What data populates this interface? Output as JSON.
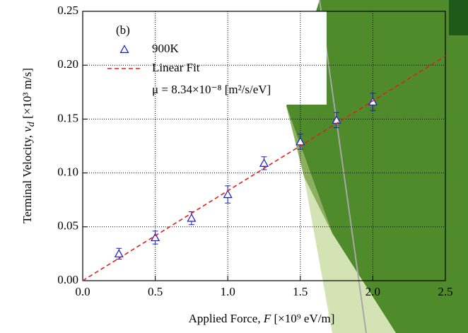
{
  "chart_data": {
    "type": "scatter",
    "annotation_label": "(b)",
    "annotation_mu": "μ = 8.34×10⁻⁸ [m²/s/eV]",
    "x_label": {
      "text": "Applied Force, ",
      "var": "F",
      "unit": " [×10⁹ eV/m]"
    },
    "y_label": {
      "text": "Terminal Velocity, ",
      "var": "v",
      "sub": "d",
      "unit": " [×10³ m/s]"
    },
    "xlim": [
      0,
      2.5
    ],
    "ylim": [
      0,
      0.25
    ],
    "xticks": [
      {
        "value": 0,
        "label": "0.0"
      },
      0.5,
      {
        "value": 1,
        "label": "1.0"
      },
      1.5,
      {
        "value": 2,
        "label": "2.0"
      },
      2.5
    ],
    "yticks": [
      {
        "value": 0,
        "label": "0.00"
      },
      0.05,
      {
        "value": 0.1,
        "label": "0.10"
      },
      0.15,
      {
        "value": 0.2,
        "label": "0.20"
      },
      0.25
    ],
    "grid": true,
    "series": [
      {
        "name": "900K",
        "color": "#1a1acc",
        "marker": "triangle",
        "x": [
          0.25,
          0.5,
          0.75,
          1.0,
          1.25,
          1.5,
          1.75,
          2.0
        ],
        "values": [
          0.025,
          0.04,
          0.058,
          0.08,
          0.109,
          0.129,
          0.149,
          0.166
        ],
        "errors": [
          0.005,
          0.006,
          0.006,
          0.008,
          0.006,
          0.007,
          0.007,
          0.008
        ]
      },
      {
        "name": "Linear Fit",
        "color": "#e02020",
        "style": "dashed",
        "x": [
          0,
          2.5
        ],
        "values": [
          0,
          0.2085
        ]
      }
    ]
  }
}
